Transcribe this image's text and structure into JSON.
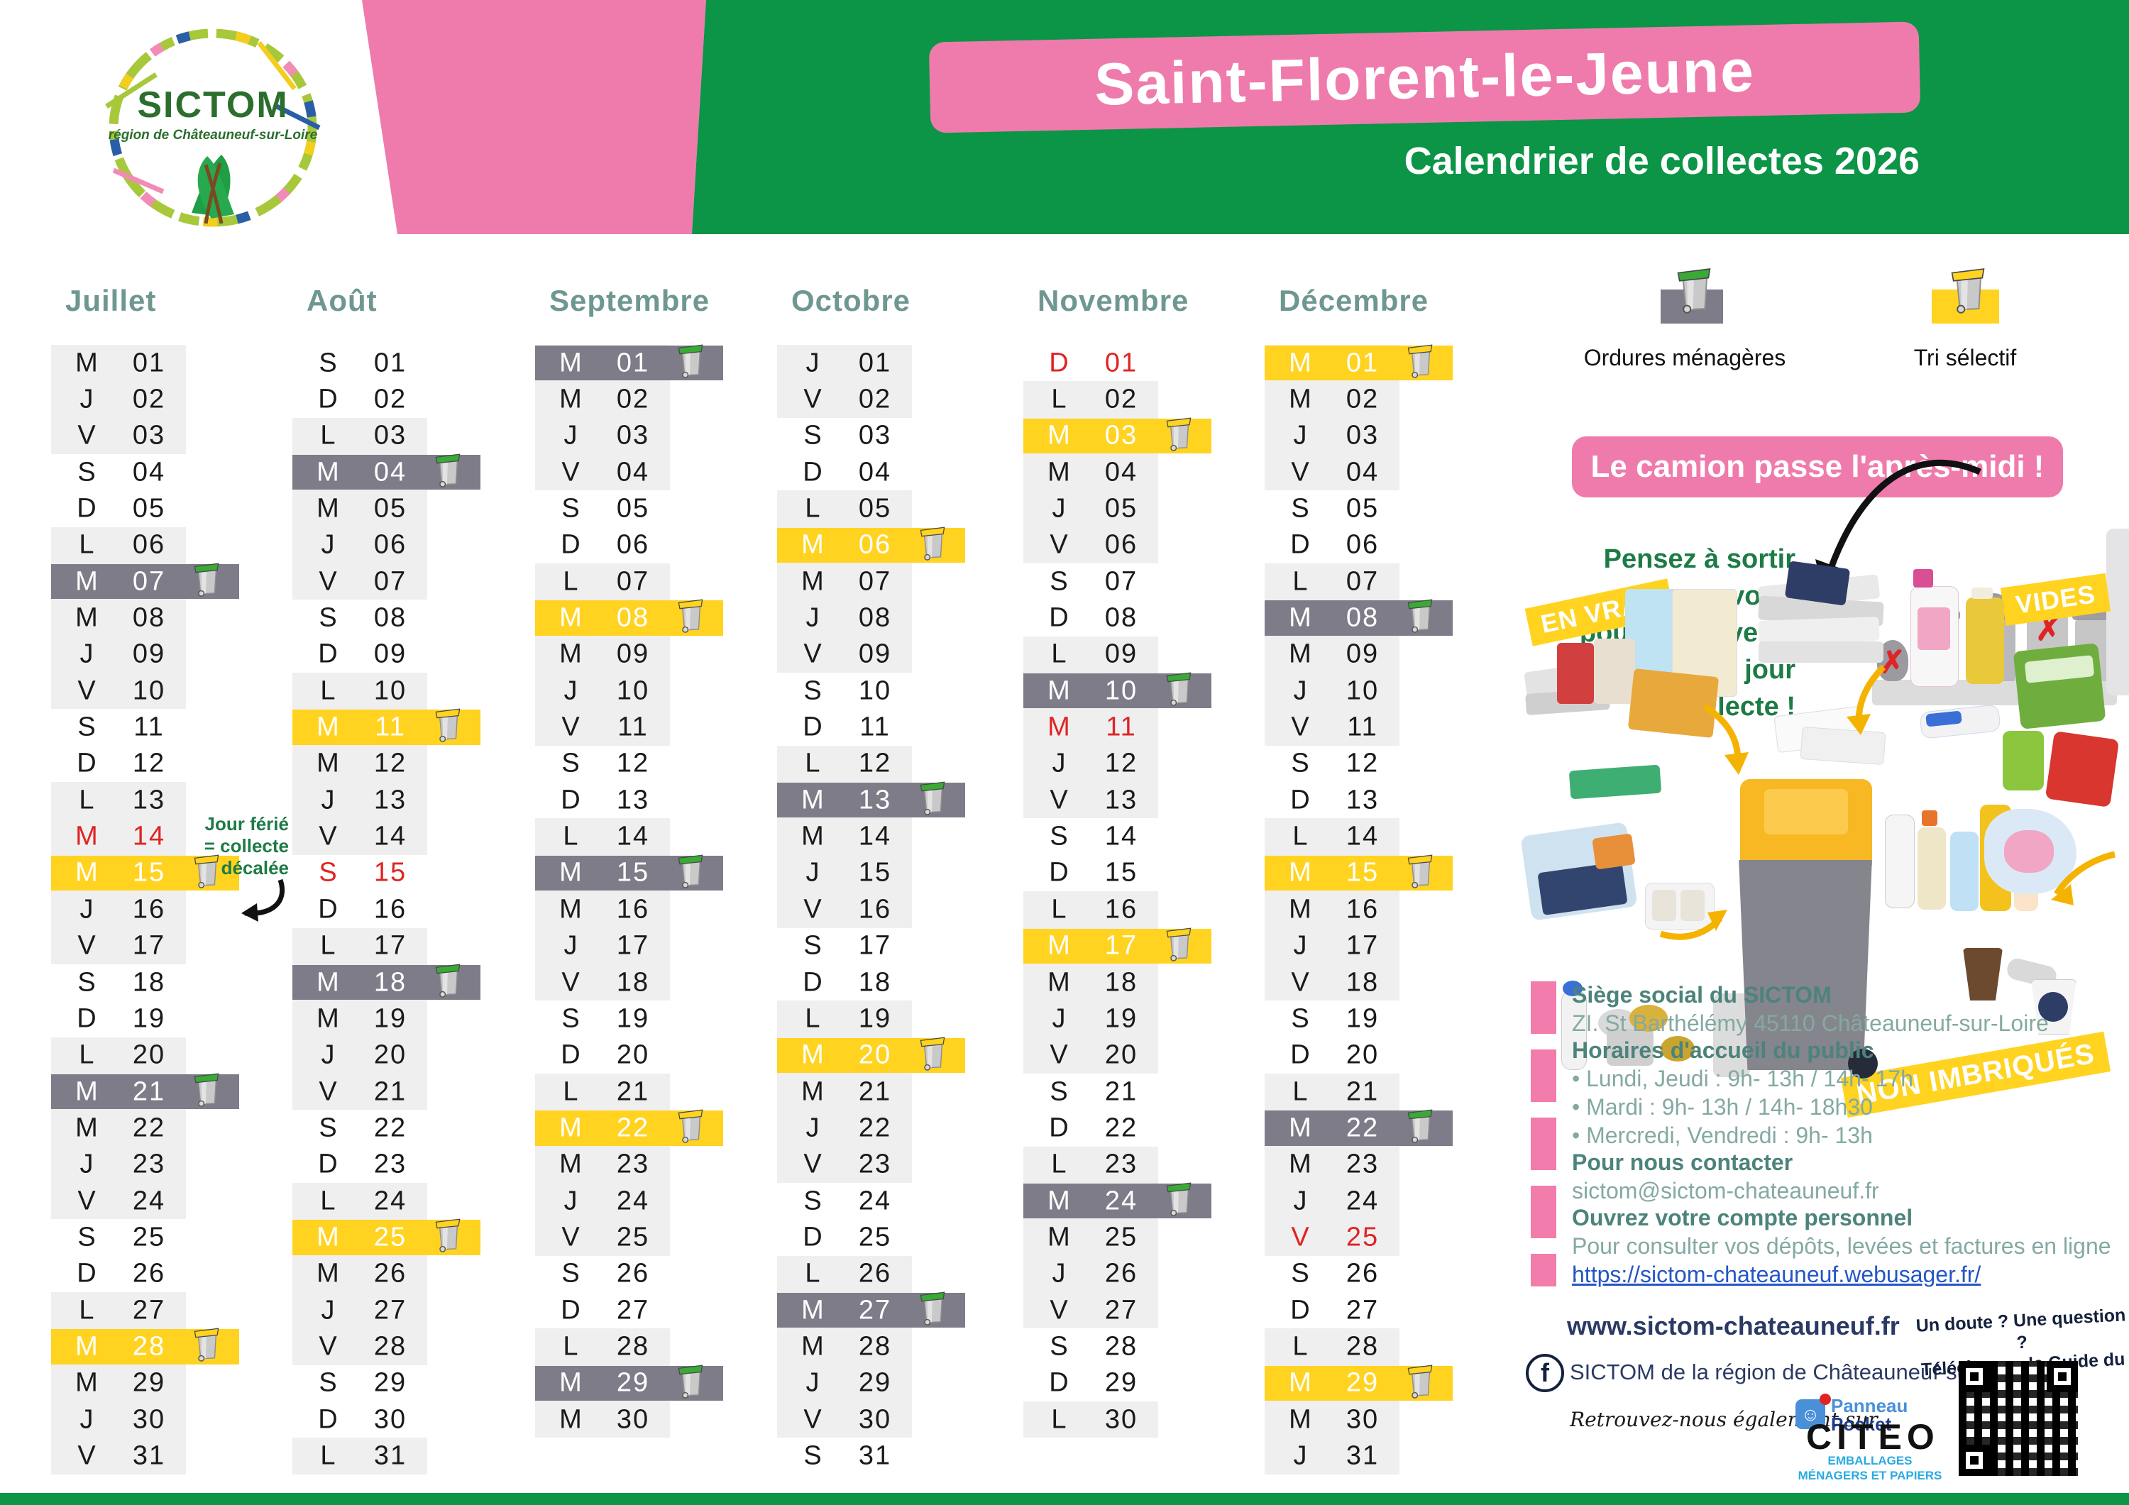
{
  "colors": {
    "green": "#0c9447",
    "pink": "#ef7bac",
    "yellow": "#ffd320",
    "gray_highlight": "#7d7c88",
    "band_gray": "#efeff0",
    "holiday_red": "#e02424",
    "title_teal": "#6f9791",
    "dark_green_text": "#1d7b45",
    "navy": "#2b3a64",
    "link_blue": "#2456c7",
    "citeo_blue": "#29abe2"
  },
  "logo": {
    "name": "SICTOM",
    "region": "région de Châteauneuf-sur-Loire"
  },
  "header": {
    "town": "Saint-Florent-le-Jeune",
    "subtitle": "Calendrier de collectes 2026"
  },
  "legend": {
    "om_label": "Ordures ménagères",
    "tri_label": "Tri sélectif"
  },
  "banner": {
    "text": "Le camion passe l'après-midi !"
  },
  "reminder": {
    "line1": "Pensez à sortir votre",
    "line2": "poubelle la veille du jour",
    "line3": "de collecte !",
    "check": "V"
  },
  "holiday_note": {
    "line1": "Jour férié",
    "line2": "= collecte",
    "line3": "décalée"
  },
  "tri_badges": {
    "vrac": "EN VRAC",
    "vides": "VIDES",
    "non_imbriques": "NON IMBRIQUÉS"
  },
  "weekday_letters": [
    "L",
    "M",
    "M",
    "J",
    "V",
    "S",
    "D"
  ],
  "months": [
    {
      "name": "Juillet",
      "num_days": 31,
      "first_weekday": 2,
      "om": [
        7,
        21
      ],
      "tri": [
        15,
        28
      ],
      "holidays": [
        14
      ]
    },
    {
      "name": "Août",
      "num_days": 31,
      "first_weekday": 5,
      "om": [
        4,
        18
      ],
      "tri": [
        11,
        25
      ],
      "holidays": [
        15
      ]
    },
    {
      "name": "Septembre",
      "num_days": 30,
      "first_weekday": 1,
      "om": [
        1,
        15,
        29
      ],
      "tri": [
        8,
        22
      ],
      "holidays": []
    },
    {
      "name": "Octobre",
      "num_days": 31,
      "first_weekday": 3,
      "om": [
        13,
        27
      ],
      "tri": [
        6,
        20
      ],
      "holidays": []
    },
    {
      "name": "Novembre",
      "num_days": 30,
      "first_weekday": 6,
      "om": [
        10,
        24
      ],
      "tri": [
        3,
        17
      ],
      "holidays": [
        1,
        11
      ]
    },
    {
      "name": "Décembre",
      "num_days": 31,
      "first_weekday": 1,
      "om": [
        8,
        22
      ],
      "tri": [
        1,
        15,
        29
      ],
      "holidays": [
        25
      ]
    }
  ],
  "info": {
    "siege_title": "Siège social du SICTOM",
    "siege_addr": "ZI. St Barthélémy 45110 Châteauneuf-sur-Loire",
    "horaires_title": "Horaires d'accueil du public",
    "horaires_1": "• Lundi, Jeudi : 9h- 13h / 14h- 17h",
    "horaires_2": "• Mardi : 9h- 13h / 14h- 18h30",
    "horaires_3": "• Mercredi, Vendredi : 9h- 13h",
    "contact_title": "Pour nous contacter",
    "email": "sictom@sictom-chateauneuf.fr",
    "compte_title": "Ouvrez votre compte personnel",
    "compte_text": "Pour consulter vos dépôts, levées et factures en ligne :",
    "compte_url": "https://sictom-chateauneuf.webusager.fr/"
  },
  "footer": {
    "website": "www.sictom-chateauneuf.fr",
    "facebook_label": "SICTOM de la région de Châteauneuf-sur-Loire",
    "also_on": "Retrouvez-nous également sur",
    "panneau": "Panneau",
    "pocket": "Pocket",
    "question_line1": "Un doute ? Une question ?",
    "question_line2": "Téléchargez le Guide du Tri !",
    "citeo": "CITEO",
    "citeo_sub1": "EMBALLAGES",
    "citeo_sub2": "MÉNAGERS ET PAPIERS"
  }
}
